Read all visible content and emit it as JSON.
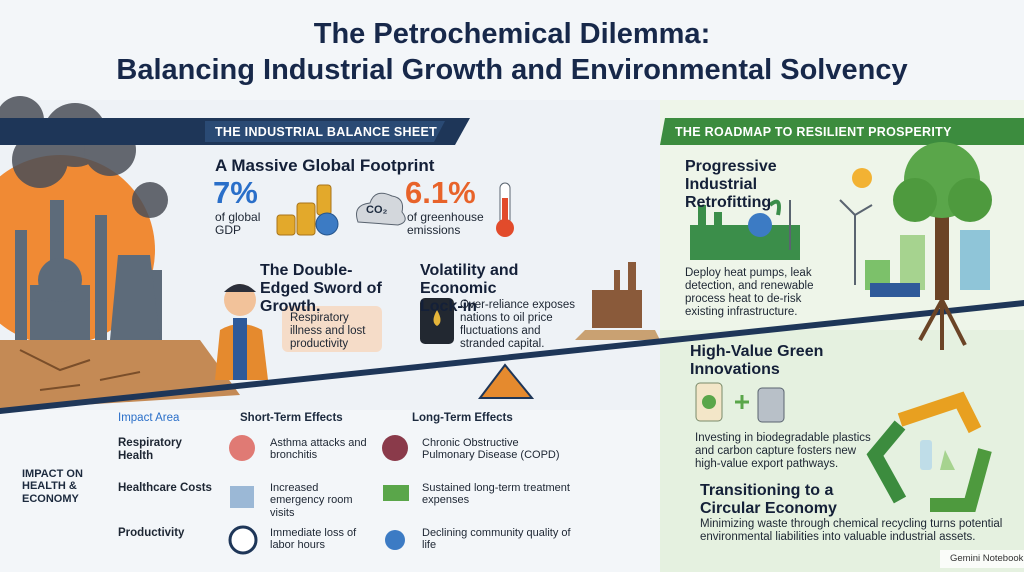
{
  "title": {
    "line1": "The Petrochemical Dilemma:",
    "line2": "Balancing Industrial Growth and Environmental Solvency"
  },
  "left": {
    "header": "THE INDUSTRIAL BALANCE SHEET",
    "footprint": {
      "title": "A Massive Global Footprint",
      "stats": [
        {
          "value": "7%",
          "label": "of global GDP"
        },
        {
          "value": "6.1%",
          "label": "of greenhouse emissions"
        }
      ],
      "cloud_label": "CO₂"
    },
    "sword": {
      "title": "The Double-Edged Sword of Growth.",
      "note": "Respiratory illness and lost productivity"
    },
    "volatility": {
      "title": "Volatility and Economic Lock-in",
      "text": "Over-reliance exposes nations to oil price fluctuations and stranded capital."
    }
  },
  "table": {
    "side_label": "IMPACT ON HEALTH & ECONOMY",
    "headers": [
      "Impact Area",
      "Short-Term Effects",
      "Long-Term Effects"
    ],
    "rows": [
      [
        "Respiratory Health",
        "Asthma attacks and bronchitis",
        "Chronic Obstructive Pulmonary Disease (COPD)"
      ],
      [
        "Healthcare Costs",
        "Increased emergency room visits",
        "Sustained long-term treatment expenses"
      ],
      [
        "Productivity",
        "Immediate loss of labor hours",
        "Declining community quality of life"
      ]
    ]
  },
  "right": {
    "header": "THE ROADMAP TO RESILIENT PROSPERITY",
    "sections": [
      {
        "title": "Progressive Industrial Retrofitting",
        "text": "Deploy heat pumps, leak detection, and renewable process heat to de-risk existing infrastructure."
      },
      {
        "title": "High-Value Green Innovations",
        "text": "Investing in biodegradable plastics and carbon capture fosters new high-value export pathways."
      },
      {
        "title": "Transitioning to a Circular Economy",
        "text": "Minimizing waste through chemical recycling turns potential environmental liabilities into valuable industrial assets."
      }
    ]
  },
  "footer": "Gemini Notebook"
}
